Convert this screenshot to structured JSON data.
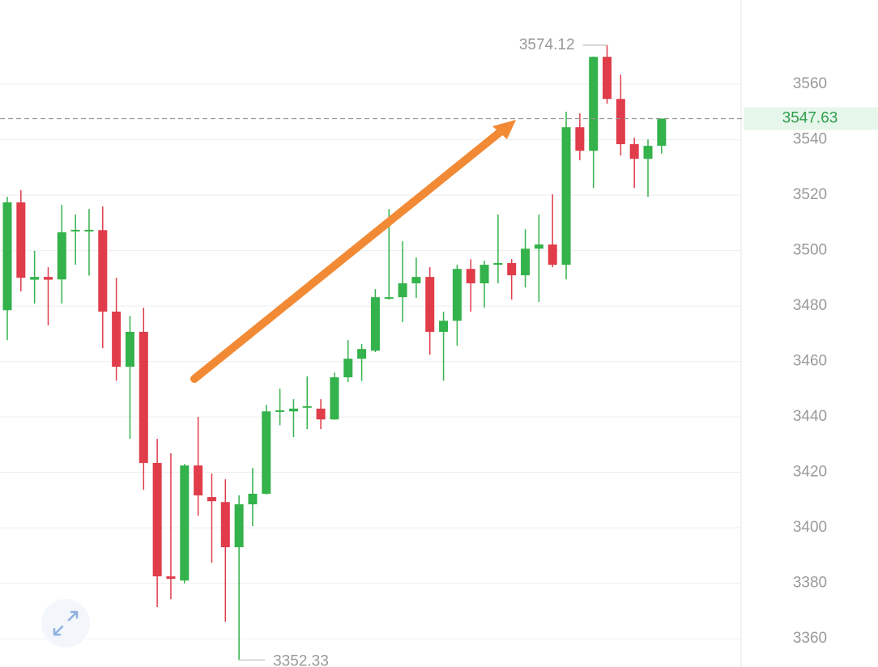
{
  "chart_data": {
    "type": "candlestick",
    "up_color": "#34b24b",
    "down_color": "#e03c4a",
    "grid": true,
    "ylim": [
      3349.8,
      3590.4
    ],
    "yticks": [
      3360,
      3380,
      3400,
      3420,
      3440,
      3460,
      3480,
      3500,
      3520,
      3540,
      3560
    ],
    "series": {
      "open": [
        3478.5,
        3517.4,
        3489.5,
        3490.5,
        3489.6,
        3507,
        3507,
        3507.4,
        3478,
        3458.1,
        3470.7,
        3423.4,
        3382.5,
        3381,
        3422.5,
        3411.1,
        3409.3,
        3393,
        3408.5,
        3412.3,
        3441.8,
        3442,
        3443.3,
        3443,
        3439.1,
        3454.3,
        3461,
        3463.9,
        3482.6,
        3483.2,
        3488.2,
        3490.5,
        3470.7,
        3474.7,
        3493.4,
        3488.2,
        3494.9,
        3495.5,
        3491.1,
        3500.7,
        3502.2,
        3494.9,
        3544.5,
        3536,
        3569.9,
        3554.7,
        3538.4,
        3533.1,
        3537.8
      ],
      "high": [
        3519.4,
        3521.8,
        3499.9,
        3494,
        3516.5,
        3513,
        3515,
        3515.9,
        3490.2,
        3476.5,
        3479.4,
        3432.1,
        3426.9,
        3423,
        3440,
        3419.6,
        3417.5,
        3411.7,
        3421.6,
        3444.4,
        3450.2,
        3446.4,
        3454.6,
        3446.4,
        3456,
        3467.7,
        3466.3,
        3486.1,
        3515,
        3503.4,
        3497.5,
        3494,
        3478,
        3494.9,
        3496.9,
        3496.4,
        3513,
        3496.9,
        3507.7,
        3513,
        3520.3,
        3550.1,
        3549.5,
        3570,
        3574.12,
        3563.5,
        3540.7,
        3540.1,
        3547.63
      ],
      "low": [
        3467.7,
        3485.3,
        3480.9,
        3473,
        3480.9,
        3494.9,
        3491,
        3464.8,
        3453.1,
        3432.1,
        3413.7,
        3371.4,
        3374.3,
        3380,
        3404.4,
        3387.4,
        3366.1,
        3352.33,
        3400.6,
        3412,
        3437,
        3432.7,
        3435.6,
        3435.6,
        3439,
        3452.6,
        3453,
        3463.4,
        3482.3,
        3474.2,
        3482.9,
        3462.5,
        3453.1,
        3465.7,
        3478,
        3479.4,
        3488.2,
        3482.3,
        3486.7,
        3481.5,
        3494,
        3489.6,
        3532.6,
        3522.6,
        3553,
        3534.3,
        3522.6,
        3519.4,
        3535
      ],
      "close": [
        3517.4,
        3490.2,
        3490.5,
        3489.5,
        3506.6,
        3507.5,
        3507.5,
        3478,
        3458.1,
        3470.7,
        3423.4,
        3382.5,
        3381.6,
        3422.5,
        3411.7,
        3409.6,
        3393,
        3408.5,
        3412.3,
        3442,
        3442.4,
        3443,
        3443.9,
        3439.1,
        3454.3,
        3461,
        3464.5,
        3483.2,
        3483.2,
        3488.2,
        3490.5,
        3470.7,
        3474.7,
        3493.4,
        3488.2,
        3494.9,
        3495.5,
        3491.1,
        3500.7,
        3502.2,
        3494.9,
        3544.5,
        3536,
        3569.9,
        3554.7,
        3538.4,
        3533.1,
        3537.8,
        3547.63
      ]
    }
  }
}
